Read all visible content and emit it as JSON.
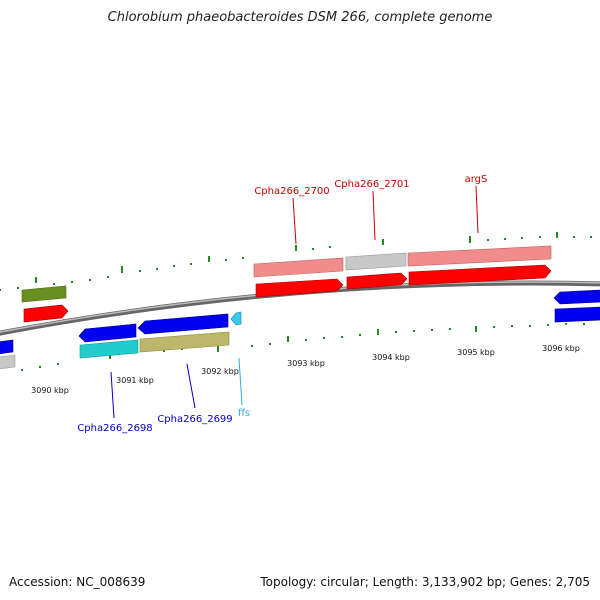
{
  "title": "Chlorobium phaeobacteroides DSM 266, complete genome",
  "accession_label": "Accession: NC_008639",
  "summary_label": "Topology: circular; Length: 3,133,902 bp; Genes: 2,705",
  "scale_labels": [
    "3090 kbp",
    "3091 kbp",
    "3092 kbp",
    "3093 kbp",
    "3094 kbp",
    "3095 kbp",
    "3096 kbp"
  ],
  "gene_labels": {
    "cpha266_2700": "Cpha266_2700",
    "cpha266_2701": "Cpha266_2701",
    "args": "argS",
    "cpha266_2698": "Cpha266_2698",
    "cpha266_2699": "Cpha266_2699",
    "ffs": "ffs"
  },
  "colors": {
    "forward_label": "#cc0000",
    "reverse_label": "#0000cc",
    "rna_label": "#33aadd",
    "tick": "#228822",
    "backbone": "#888888"
  }
}
